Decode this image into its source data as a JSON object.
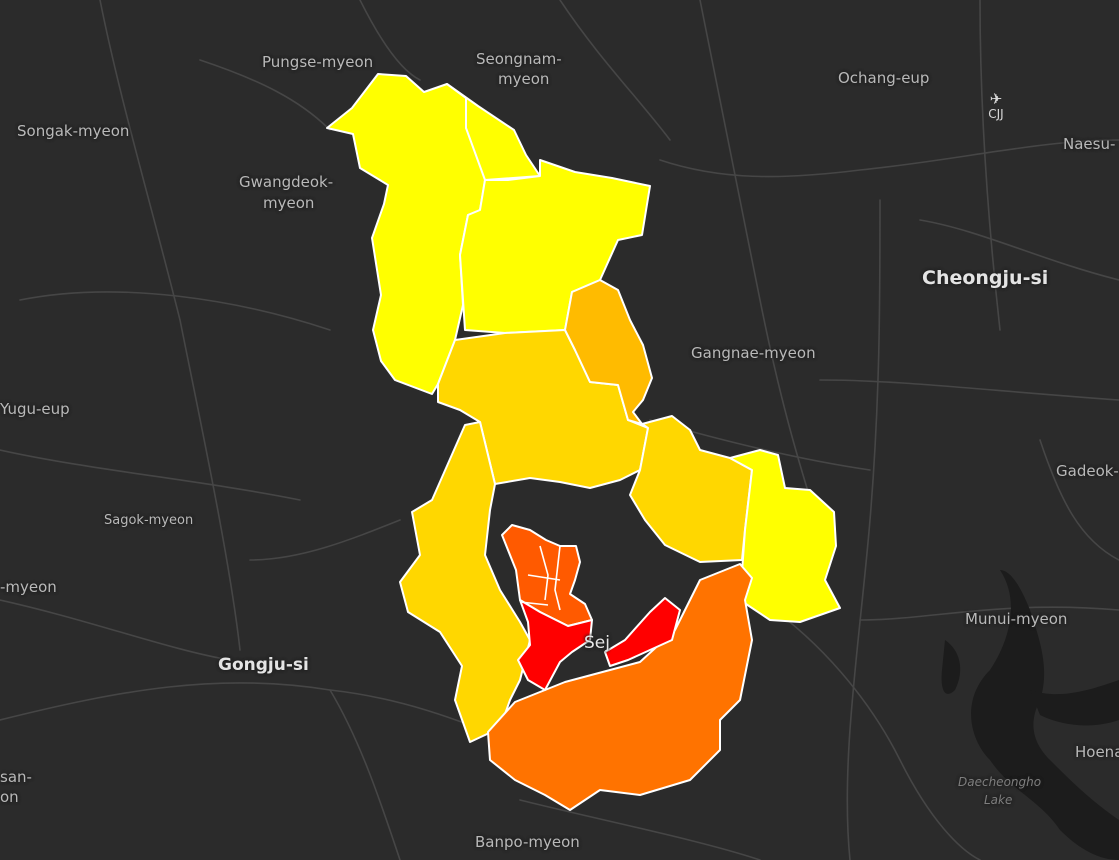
{
  "colors": {
    "background": "#2b2b2b",
    "roads": "#474747",
    "water": "#1c1c1c",
    "region_border": "#ffffff",
    "choropleth_scale": [
      "#ffff00",
      "#ffd700",
      "#ffbb00",
      "#ff7300",
      "#ff5a00",
      "#ff0000"
    ]
  },
  "places": {
    "pungse": "Pungse-myeon",
    "seongnam_1": "Seongnam-",
    "seongnam_2": "myeon",
    "ochang": "Ochang-eup",
    "naesu": "Naesu-",
    "songak": "Songak-myeon",
    "gwangdeok_1": "Gwangdeok-",
    "gwangdeok_2": "myeon",
    "cheongju": "Cheongju-si",
    "gangnae": "Gangnae-myeon",
    "yugu": "Yugu-eup",
    "sagok": "Sagok-myeon",
    "gadeok": "Gadeok-",
    "myeon_left": "-myeon",
    "munui": "Munui-myeon",
    "gongju": "Gongju-si",
    "sejong_partial": "Sej",
    "hoena": "Hoena",
    "san_1": "san-",
    "san_2": "on",
    "lake_1": "Daecheongho",
    "lake_2": "Lake",
    "banpo": "Banpo-myeon"
  },
  "airport": {
    "icon": "airplane-icon",
    "code": "CJJ"
  },
  "regions": [
    {
      "name": "north-west-district",
      "color": "#ffff00"
    },
    {
      "name": "north-east-district",
      "color": "#ffff00"
    },
    {
      "name": "east-district",
      "color": "#ffff00"
    },
    {
      "name": "central-district",
      "color": "#ffd700"
    },
    {
      "name": "narrow-east-district",
      "color": "#ffbb00"
    },
    {
      "name": "center-east-district",
      "color": "#ffd700"
    },
    {
      "name": "west-district",
      "color": "#ffd700"
    },
    {
      "name": "south-district",
      "color": "#ff7300"
    },
    {
      "name": "urban-west-district",
      "color": "#ff5a00"
    },
    {
      "name": "urban-core-district",
      "color": "#ff0000"
    },
    {
      "name": "urban-east-district",
      "color": "#ff0000"
    }
  ]
}
